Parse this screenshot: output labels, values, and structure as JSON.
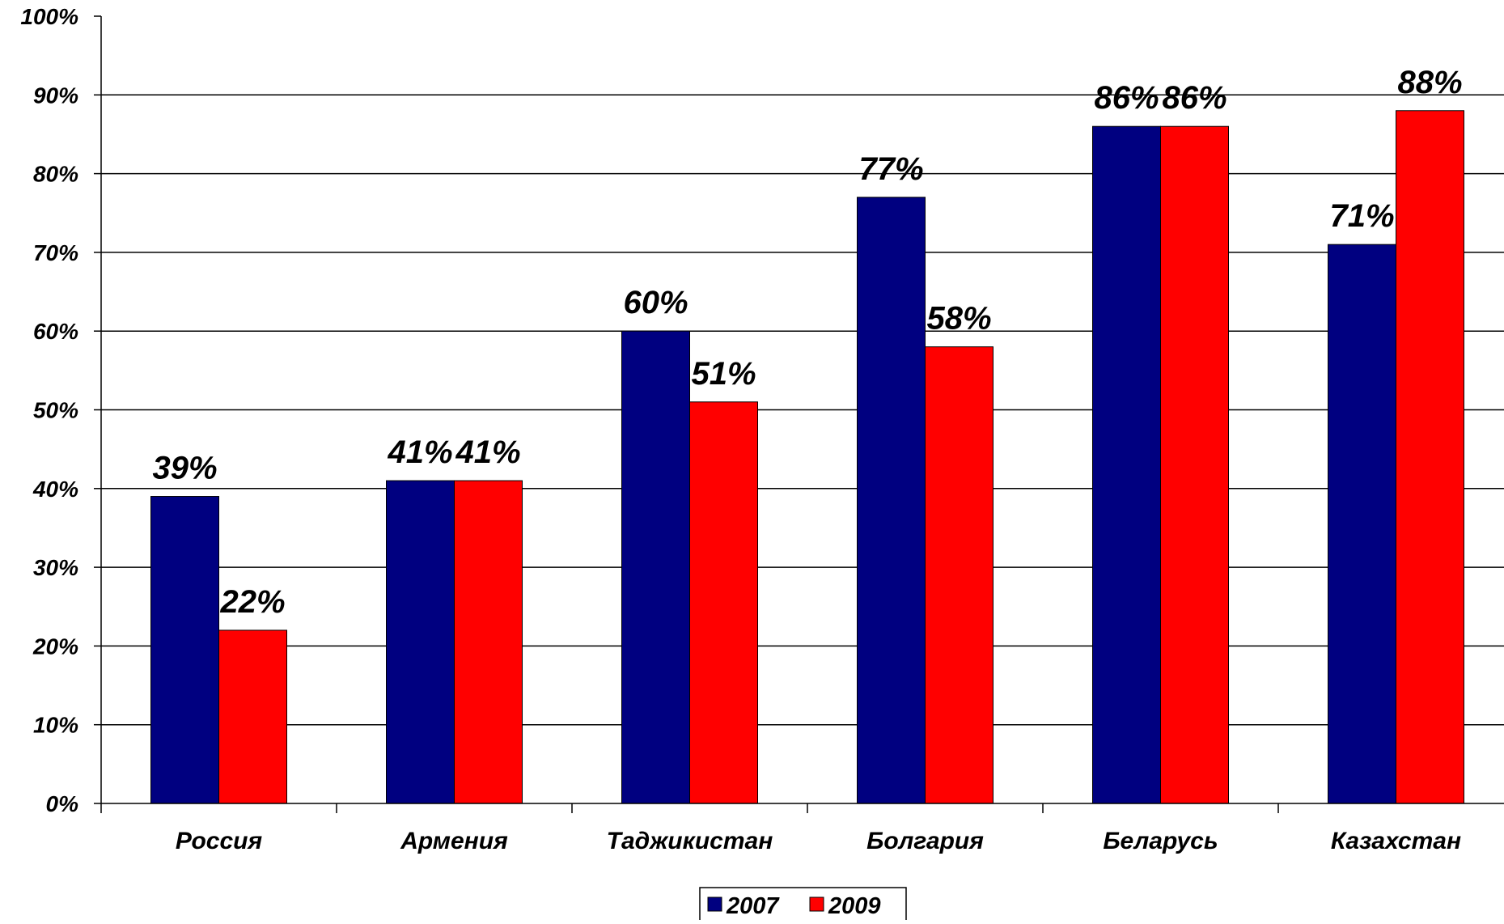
{
  "chart_data": {
    "type": "bar",
    "categories": [
      "Россия",
      "Армения",
      "Таджикистан",
      "Болгария",
      "Беларусь",
      "Казахстан"
    ],
    "series": [
      {
        "name": "2007",
        "color": "#000080",
        "values": [
          39,
          41,
          60,
          77,
          86,
          71
        ],
        "labels": [
          "39%",
          "41%",
          "60%",
          "77%",
          "86%",
          "71%"
        ]
      },
      {
        "name": "2009",
        "color": "#ff0000",
        "values": [
          22,
          41,
          51,
          58,
          86,
          88
        ],
        "labels": [
          "22%",
          "41%",
          "51%",
          "58%",
          "86%",
          "88%"
        ]
      }
    ],
    "ylim": [
      0,
      100
    ],
    "yticks": [
      "0%",
      "10%",
      "20%",
      "30%",
      "40%",
      "50%",
      "60%",
      "70%",
      "80%",
      "90%",
      "100%"
    ],
    "grid": true,
    "legend_position": "bottom-center"
  }
}
